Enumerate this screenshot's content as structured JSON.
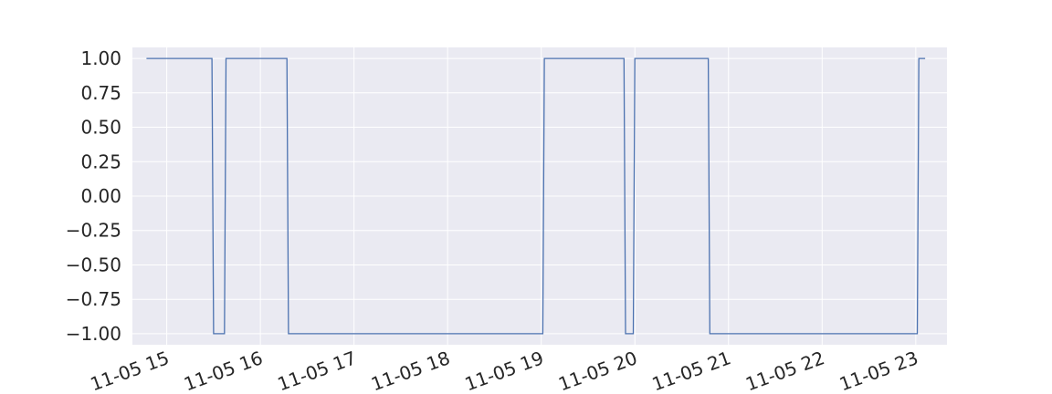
{
  "chart_data": {
    "type": "line",
    "title": "",
    "xlabel": "",
    "ylabel": "",
    "x_axis_type": "time",
    "xlim": [
      "2024-11-05T14:38",
      "2024-11-05T23:20"
    ],
    "ylim": [
      -1.08,
      1.08
    ],
    "x_ticks": [
      {
        "value": "2024-11-05T15:00",
        "label": "11-05 15"
      },
      {
        "value": "2024-11-05T16:00",
        "label": "11-05 16"
      },
      {
        "value": "2024-11-05T17:00",
        "label": "11-05 17"
      },
      {
        "value": "2024-11-05T18:00",
        "label": "11-05 18"
      },
      {
        "value": "2024-11-05T19:00",
        "label": "11-05 19"
      },
      {
        "value": "2024-11-05T20:00",
        "label": "11-05 20"
      },
      {
        "value": "2024-11-05T21:00",
        "label": "11-05 21"
      },
      {
        "value": "2024-11-05T22:00",
        "label": "11-05 22"
      },
      {
        "value": "2024-11-05T23:00",
        "label": "11-05 23"
      }
    ],
    "y_ticks": [
      {
        "value": 1.0,
        "label": "1.00"
      },
      {
        "value": 0.75,
        "label": "0.75"
      },
      {
        "value": 0.5,
        "label": "0.50"
      },
      {
        "value": 0.25,
        "label": "0.25"
      },
      {
        "value": 0.0,
        "label": "0.00"
      },
      {
        "value": -0.25,
        "label": "−0.25"
      },
      {
        "value": -0.5,
        "label": "−0.50"
      },
      {
        "value": -0.75,
        "label": "−0.75"
      },
      {
        "value": -1.0,
        "label": "−1.00"
      }
    ],
    "grid": true,
    "legend": "none",
    "colors": {
      "background": "#eaeaf2",
      "grid": "#ffffff",
      "line": "#4c72b0",
      "text": "#262626"
    },
    "series": [
      {
        "x": [
          "2024-11-05T14:47",
          "2024-11-05T15:29",
          "2024-11-05T15:30",
          "2024-11-05T15:37",
          "2024-11-05T15:38",
          "2024-11-05T16:17",
          "2024-11-05T16:18",
          "2024-11-05T19:01",
          "2024-11-05T19:02",
          "2024-11-05T19:53",
          "2024-11-05T19:54",
          "2024-11-05T19:59",
          "2024-11-05T20:00",
          "2024-11-05T20:47",
          "2024-11-05T20:48",
          "2024-11-05T23:01",
          "2024-11-05T23:02",
          "2024-11-05T23:06"
        ],
        "y": [
          1,
          1,
          -1,
          -1,
          1,
          1,
          -1,
          -1,
          1,
          1,
          -1,
          -1,
          1,
          1,
          -1,
          -1,
          1,
          1
        ]
      }
    ]
  }
}
